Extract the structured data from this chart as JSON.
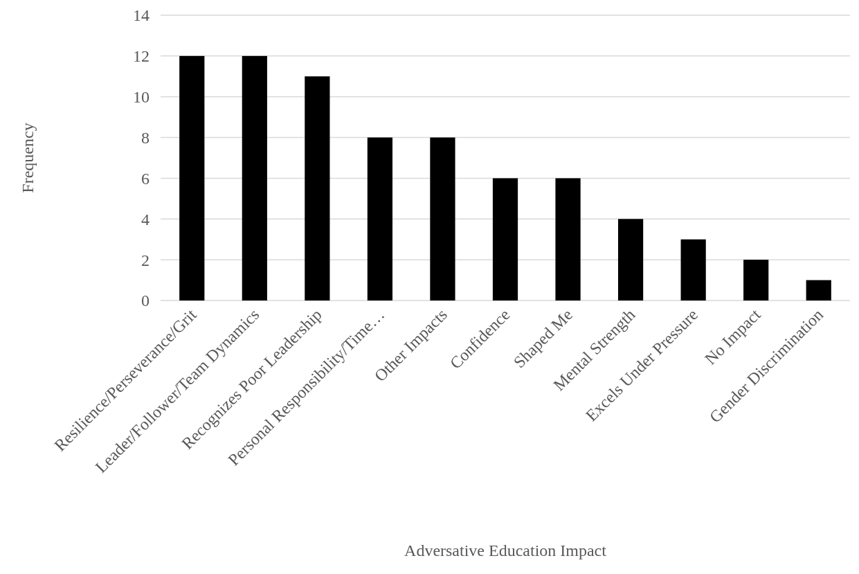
{
  "chart_data": {
    "type": "bar",
    "xlabel": "Adversative Education Impact",
    "ylabel": "Frequency",
    "categories": [
      "Resilience/Perseverance/Grit",
      "Leader/Follower/Team Dynamics",
      "Recognizes Poor Leadership",
      "Personal Responsibility/Time…",
      "Other Impacts",
      "Confidence",
      "Shaped Me",
      "Mental Strength",
      "Excels Under Pressure",
      "No Impact",
      "Gender Discrimination"
    ],
    "values": [
      12,
      12,
      11,
      8,
      8,
      6,
      6,
      4,
      3,
      2,
      1
    ],
    "color": "#000000",
    "ylim": [
      0,
      14
    ],
    "yticks": [
      0,
      2,
      4,
      6,
      8,
      10,
      12,
      14
    ],
    "grid": "y"
  }
}
